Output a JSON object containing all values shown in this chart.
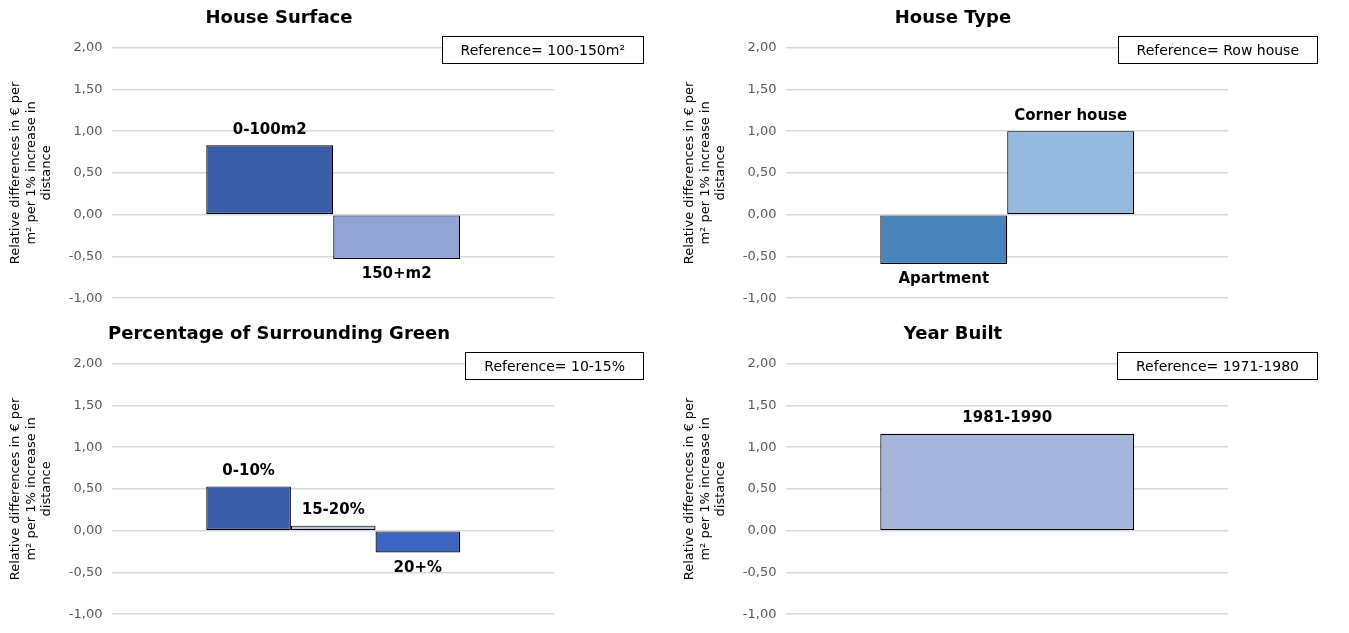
{
  "chart_data": [
    {
      "type": "bar",
      "title": "House Surface",
      "ylabel": "Relative differences in € per m² per 1% increase in distance",
      "categories": [
        null
      ],
      "series": [
        {
          "name": "0-100m2",
          "color": "#3a5ea8",
          "values": [
            0.83
          ]
        },
        {
          "name": "150+m2",
          "color": "#8fa3d4",
          "values": [
            -0.53
          ]
        }
      ],
      "ylim": [
        -1,
        2
      ],
      "yticks": [
        {
          "value": -1,
          "label": "-1,00"
        },
        {
          "value": -0.5,
          "label": "-0,50"
        },
        {
          "value": 0,
          "label": "0,00"
        },
        {
          "value": 0.5,
          "label": "0,50"
        },
        {
          "value": 1,
          "label": "1,00"
        },
        {
          "value": 1.5,
          "label": "1,50"
        },
        {
          "value": 2,
          "label": "2,00"
        }
      ],
      "grid": "y",
      "tick_labels": "y",
      "annotations": [
        "Reference= 100-150m²"
      ]
    },
    {
      "type": "bar",
      "title": "House Type",
      "ylabel": "Relative differences in € per m² per 1% increase in distance",
      "categories": [
        null
      ],
      "series": [
        {
          "name": "Apartment",
          "color": "#4a84bd",
          "values": [
            -0.59
          ]
        },
        {
          "name": "Corner house",
          "color": "#95b8de",
          "values": [
            1.0
          ]
        }
      ],
      "ylim": [
        -1,
        2
      ],
      "yticks": [
        {
          "value": -1,
          "label": "-1,00"
        },
        {
          "value": -0.5,
          "label": "-0,50"
        },
        {
          "value": 0,
          "label": "0,00"
        },
        {
          "value": 0.5,
          "label": "0,50"
        },
        {
          "value": 1,
          "label": "1,00"
        },
        {
          "value": 1.5,
          "label": "1,50"
        },
        {
          "value": 2,
          "label": "2,00"
        }
      ],
      "grid": "y",
      "tick_labels": "y",
      "annotations": [
        "Reference= Row house"
      ]
    },
    {
      "type": "bar",
      "title": "Percentage of Surrounding Green",
      "ylabel": "Relative differences in € per m² per 1% increase in distance",
      "categories": [
        null
      ],
      "series": [
        {
          "name": "0-10%",
          "color": "#3a5ea8",
          "values": [
            0.53
          ]
        },
        {
          "name": "15-20%",
          "color": "#b7c3e3",
          "values": [
            0.06
          ]
        },
        {
          "name": "20+%",
          "color": "#3d64c0",
          "values": [
            -0.26
          ]
        }
      ],
      "ylim": [
        -1,
        2
      ],
      "yticks": [
        {
          "value": -1,
          "label": "-1,00"
        },
        {
          "value": -0.5,
          "label": "-0,50"
        },
        {
          "value": 0,
          "label": "0,00"
        },
        {
          "value": 0.5,
          "label": "0,50"
        },
        {
          "value": 1,
          "label": "1,00"
        },
        {
          "value": 1.5,
          "label": "1,50"
        },
        {
          "value": 2,
          "label": "2,00"
        }
      ],
      "grid": "y",
      "tick_labels": "y",
      "annotations": [
        "Reference= 10-15%"
      ]
    },
    {
      "type": "bar",
      "title": "Year Built",
      "ylabel": "Relative differences in € per m² per 1% increase in distance",
      "categories": [
        null
      ],
      "series": [
        {
          "name": "1981-1990",
          "color": "#a6b5da",
          "values": [
            1.16
          ]
        }
      ],
      "ylim": [
        -1,
        2
      ],
      "yticks": [
        {
          "value": -1,
          "label": "-1,00"
        },
        {
          "value": -0.5,
          "label": "-0,50"
        },
        {
          "value": 0,
          "label": "0,00"
        },
        {
          "value": 0.5,
          "label": "0,50"
        },
        {
          "value": 1,
          "label": "1,00"
        },
        {
          "value": 1.5,
          "label": "1,50"
        },
        {
          "value": 2,
          "label": "2,00"
        }
      ],
      "grid": "y",
      "tick_labels": "y",
      "annotations": [
        "Reference= 1971-1980"
      ]
    }
  ]
}
